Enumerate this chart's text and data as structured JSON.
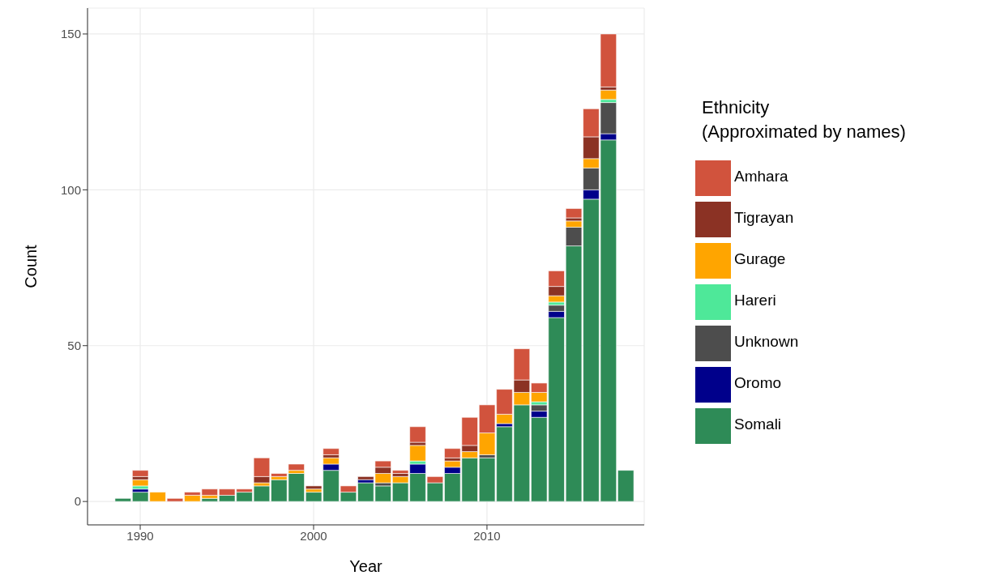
{
  "chart_data": {
    "type": "bar",
    "xlabel": "Year",
    "ylabel": "Count",
    "legend_title": "Ethnicity\n(Approximated by names)",
    "stacked": true,
    "x": [
      1989,
      1990,
      1991,
      1992,
      1993,
      1994,
      1995,
      1996,
      1997,
      1998,
      1999,
      2000,
      2001,
      2002,
      2003,
      2004,
      2005,
      2006,
      2007,
      2008,
      2009,
      2010,
      2011,
      2012,
      2013,
      2014,
      2015,
      2016,
      2017,
      2018
    ],
    "series": [
      {
        "name": "Somali",
        "color": "#2e8b57",
        "values": [
          1,
          3,
          0,
          0,
          0,
          1,
          2,
          3,
          5,
          7,
          9,
          3,
          10,
          3,
          6,
          5,
          6,
          9,
          6,
          9,
          14,
          14,
          24,
          31,
          27,
          59,
          82,
          97,
          116,
          10
        ]
      },
      {
        "name": "Oromo",
        "color": "#00008b",
        "values": [
          0,
          1,
          0,
          0,
          0,
          0,
          0,
          0,
          0,
          0,
          0,
          0,
          2,
          0,
          1,
          0,
          0,
          3,
          0,
          2,
          0,
          0,
          1,
          0,
          2,
          2,
          0,
          3,
          2,
          0
        ]
      },
      {
        "name": "Unknown",
        "color": "#4d4d4d",
        "values": [
          0,
          0,
          0,
          0,
          0,
          0,
          0,
          0,
          0,
          0,
          0,
          0,
          0,
          0,
          0,
          1,
          0,
          0,
          0,
          0,
          0,
          1,
          0,
          0,
          2,
          2,
          6,
          7,
          10,
          0
        ]
      },
      {
        "name": "Hareri",
        "color": "#4ee899",
        "values": [
          0,
          1,
          0,
          0,
          0,
          0,
          0,
          0,
          0,
          0,
          0,
          0,
          0,
          0,
          0,
          0,
          0,
          1,
          0,
          0,
          0,
          0,
          0,
          0,
          1,
          1,
          0,
          0,
          1,
          0
        ]
      },
      {
        "name": "Gurage",
        "color": "#ffa500",
        "values": [
          0,
          2,
          3,
          0,
          2,
          1,
          0,
          0,
          1,
          1,
          1,
          1,
          2,
          0,
          0,
          3,
          2,
          5,
          0,
          2,
          2,
          7,
          3,
          4,
          3,
          2,
          2,
          3,
          3,
          0
        ]
      },
      {
        "name": "Tigrayan",
        "color": "#8b3224",
        "values": [
          0,
          1,
          0,
          0,
          0,
          0,
          0,
          0,
          2,
          0,
          0,
          1,
          1,
          0,
          1,
          2,
          1,
          1,
          0,
          1,
          2,
          0,
          0,
          4,
          0,
          3,
          1,
          7,
          1,
          0
        ]
      },
      {
        "name": "Amhara",
        "color": "#d1533d",
        "values": [
          0,
          2,
          0,
          1,
          1,
          2,
          2,
          1,
          6,
          1,
          2,
          0,
          2,
          2,
          0,
          2,
          1,
          5,
          2,
          3,
          9,
          9,
          8,
          10,
          3,
          5,
          3,
          9,
          17,
          0
        ]
      }
    ],
    "xlim": [
      1986.96,
      2019.07
    ],
    "xticks": [
      1990,
      2000,
      2010
    ],
    "ylim": [
      -7.5,
      158.3
    ],
    "yticks": [
      0,
      50,
      100,
      150
    ],
    "grid": true,
    "legend": "right"
  }
}
